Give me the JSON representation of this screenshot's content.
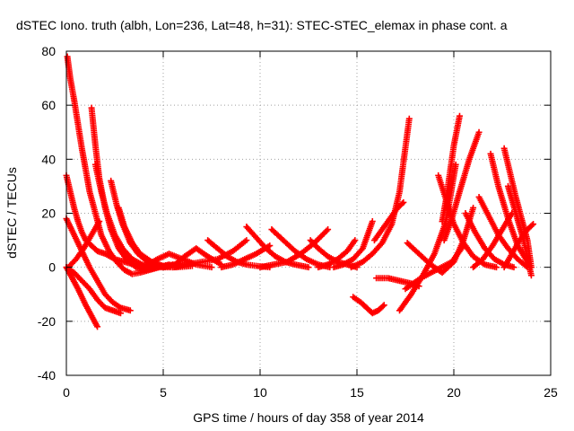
{
  "chart_data": {
    "type": "scatter",
    "title": "dSTEC Iono. truth (albh, Lon=236, Lat=48, h=31): STEC-STEC_elemax in phase cont. a",
    "xlabel": "GPS time / hours of day 358 of year 2014",
    "ylabel": "dSTEC  / TECUs",
    "xlim": [
      0,
      25
    ],
    "ylim": [
      -40,
      80
    ],
    "xticks": [
      0,
      5,
      10,
      15,
      20,
      25
    ],
    "yticks": [
      -40,
      -20,
      0,
      20,
      40,
      60,
      80
    ],
    "grid": true,
    "marker": "+",
    "color": "#ff0000",
    "series": [
      {
        "x": [
          0.05,
          0.2,
          0.4,
          0.6,
          0.8,
          1.0,
          1.2,
          1.5,
          1.8,
          2.2,
          2.6,
          3.0,
          3.4,
          3.8,
          4.3,
          4.8,
          5.5
        ],
        "y": [
          78,
          70,
          62,
          53,
          44,
          36,
          28,
          20,
          12,
          6,
          2,
          -1,
          -2.5,
          -2,
          -1,
          0,
          1
        ]
      },
      {
        "x": [
          0.0,
          0.3,
          0.6,
          1.0,
          1.3,
          1.6
        ],
        "y": [
          0,
          -4,
          -8,
          -14,
          -18,
          -22
        ]
      },
      {
        "x": [
          0.0,
          0.4,
          0.8,
          1.2,
          1.6,
          2.0,
          2.4,
          2.8,
          3.3
        ],
        "y": [
          18,
          12,
          6,
          0,
          -5,
          -10,
          -13,
          -15,
          -16
        ]
      },
      {
        "x": [
          0.0,
          0.4,
          0.8,
          1.2,
          1.6,
          2.0,
          2.4,
          2.8
        ],
        "y": [
          0,
          -2,
          -5,
          -8,
          -12,
          -15,
          -16,
          -17
        ]
      },
      {
        "x": [
          0.0,
          0.2,
          0.4,
          0.6,
          0.8,
          1.0,
          1.3,
          1.6,
          2.0,
          2.5,
          3.0,
          3.5,
          4.0
        ],
        "y": [
          34,
          28,
          22,
          17,
          13,
          10,
          8,
          6,
          5,
          3,
          2,
          1,
          0.5
        ]
      },
      {
        "x": [
          0.1,
          0.5,
          0.9,
          1.3,
          1.7
        ],
        "y": [
          0,
          3,
          7,
          12,
          17
        ]
      },
      {
        "x": [
          1.3,
          1.5,
          1.7,
          2.0,
          2.3,
          2.7,
          3.1,
          3.6,
          4.1,
          4.7,
          5.3
        ],
        "y": [
          59,
          45,
          33,
          22,
          14,
          7,
          3,
          0,
          -1,
          0,
          1
        ]
      },
      {
        "x": [
          1.5,
          1.8,
          2.1,
          2.5,
          2.9,
          3.4,
          3.9,
          4.5,
          5.2,
          6.0
        ],
        "y": [
          38,
          28,
          20,
          12,
          7,
          3,
          1,
          0,
          0.5,
          1
        ]
      },
      {
        "x": [
          2.3,
          2.6,
          2.9,
          3.3,
          3.7,
          4.2,
          4.8,
          5.5,
          6.3
        ],
        "y": [
          32,
          23,
          16,
          9,
          5,
          2,
          0,
          0,
          1
        ]
      },
      {
        "x": [
          2.7,
          3.0,
          3.4,
          3.8,
          4.3,
          4.9,
          5.6
        ],
        "y": [
          22,
          15,
          9,
          5,
          2,
          0.5,
          0
        ]
      },
      {
        "x": [
          3.3,
          3.8,
          4.4,
          5.0,
          5.7,
          6.5
        ],
        "y": [
          9,
          5,
          2,
          0.5,
          0,
          0.5
        ]
      },
      {
        "x": [
          4.0,
          4.7,
          5.3,
          6.0,
          6.7,
          7.5
        ],
        "y": [
          0,
          3,
          5,
          3,
          1,
          0
        ]
      },
      {
        "x": [
          5.0,
          5.6,
          6.1,
          6.7,
          7.3,
          8.0
        ],
        "y": [
          0,
          1,
          4,
          7,
          4,
          1
        ]
      },
      {
        "x": [
          5.5,
          6.2,
          7.0,
          7.8,
          8.6,
          9.3
        ],
        "y": [
          0,
          1,
          2,
          3,
          6,
          10
        ]
      },
      {
        "x": [
          7.3,
          7.8,
          8.3,
          8.8,
          9.3,
          9.8,
          10.5
        ],
        "y": [
          10,
          7,
          4,
          2,
          1,
          0.5,
          0
        ]
      },
      {
        "x": [
          8.0,
          8.6,
          9.2,
          9.8,
          10.5
        ],
        "y": [
          0,
          1,
          3,
          5,
          8
        ]
      },
      {
        "x": [
          9.3,
          9.8,
          10.3,
          10.8,
          11.3,
          11.8,
          12.5
        ],
        "y": [
          15,
          11,
          7,
          4,
          2,
          1,
          0
        ]
      },
      {
        "x": [
          10.0,
          10.7,
          11.4,
          12.1,
          12.8,
          13.5
        ],
        "y": [
          0,
          1,
          2,
          5,
          9,
          14
        ]
      },
      {
        "x": [
          10.6,
          11.2,
          11.8,
          12.4,
          13.0,
          13.6
        ],
        "y": [
          14,
          10,
          6,
          3,
          1,
          0
        ]
      },
      {
        "x": [
          12.6,
          13.0,
          13.5,
          14.0,
          14.5,
          15.0
        ],
        "y": [
          10,
          7,
          4,
          2,
          1,
          0
        ]
      },
      {
        "x": [
          13.0,
          13.5,
          14.0,
          14.5,
          14.9
        ],
        "y": [
          0,
          1,
          3,
          6,
          10
        ]
      },
      {
        "x": [
          13.8,
          14.3,
          14.8,
          15.3,
          15.8
        ],
        "y": [
          0,
          1,
          3,
          7,
          17
        ]
      },
      {
        "x": [
          14.7,
          15.3,
          15.8,
          16.3,
          16.8,
          17.2,
          17.7
        ],
        "y": [
          0,
          2,
          5,
          9,
          16,
          28,
          55
        ]
      },
      {
        "x": [
          14.8,
          15.2,
          15.5,
          15.8,
          16.1,
          16.4
        ],
        "y": [
          -11,
          -13,
          -15,
          -17,
          -16,
          -14
        ]
      },
      {
        "x": [
          15.9,
          16.3,
          16.7,
          17.1,
          17.4
        ],
        "y": [
          10,
          14,
          18,
          22,
          24
        ]
      },
      {
        "x": [
          16.0,
          16.6,
          17.2,
          17.8,
          18.2
        ],
        "y": [
          -4,
          -4,
          -5,
          -6,
          -7
        ]
      },
      {
        "x": [
          17.2,
          17.8,
          18.4,
          19.0,
          19.6,
          20.1
        ],
        "y": [
          -16,
          -10,
          -3,
          5,
          17,
          38
        ]
      },
      {
        "x": [
          17.5,
          18.3,
          19.1,
          19.9,
          20.5
        ],
        "y": [
          -8,
          -4,
          -1,
          2,
          8
        ]
      },
      {
        "x": [
          17.6,
          18.2,
          18.8,
          19.4,
          20.0,
          20.5,
          21.0
        ],
        "y": [
          9,
          5,
          1,
          -2,
          2,
          10,
          22
        ]
      },
      {
        "x": [
          19.2,
          19.6,
          20.0,
          20.5,
          21.0,
          21.6,
          22.2
        ],
        "y": [
          34,
          25,
          16,
          9,
          4,
          1,
          0
        ]
      },
      {
        "x": [
          19.5,
          19.9,
          20.3,
          20.8,
          21.3
        ],
        "y": [
          10,
          18,
          28,
          40,
          50
        ]
      },
      {
        "x": [
          20.3,
          20.0,
          19.8,
          19.6,
          19.4
        ],
        "y": [
          56,
          45,
          35,
          25,
          17
        ]
      },
      {
        "x": [
          20.6,
          21.1,
          21.6,
          22.1,
          22.6,
          23.1
        ],
        "y": [
          20,
          13,
          7,
          3,
          1,
          0
        ]
      },
      {
        "x": [
          21.0,
          21.5,
          22.0,
          22.5,
          23.0
        ],
        "y": [
          0,
          3,
          8,
          14,
          20
        ]
      },
      {
        "x": [
          21.3,
          21.8,
          22.3,
          22.8,
          23.3,
          23.8
        ],
        "y": [
          26,
          19,
          12,
          7,
          3,
          0
        ]
      },
      {
        "x": [
          21.9,
          22.3,
          22.8,
          23.3,
          23.8
        ],
        "y": [
          42,
          30,
          18,
          8,
          2
        ]
      },
      {
        "x": [
          22.6,
          22.9,
          23.2,
          23.5,
          23.8,
          24.0
        ],
        "y": [
          44,
          35,
          26,
          18,
          10,
          0
        ]
      },
      {
        "x": [
          22.8,
          23.2,
          23.6,
          24.0
        ],
        "y": [
          30,
          20,
          10,
          -3
        ]
      },
      {
        "x": [
          22.6,
          23.0,
          23.4,
          23.8,
          24.1
        ],
        "y": [
          0,
          5,
          10,
          14,
          16
        ]
      }
    ]
  }
}
